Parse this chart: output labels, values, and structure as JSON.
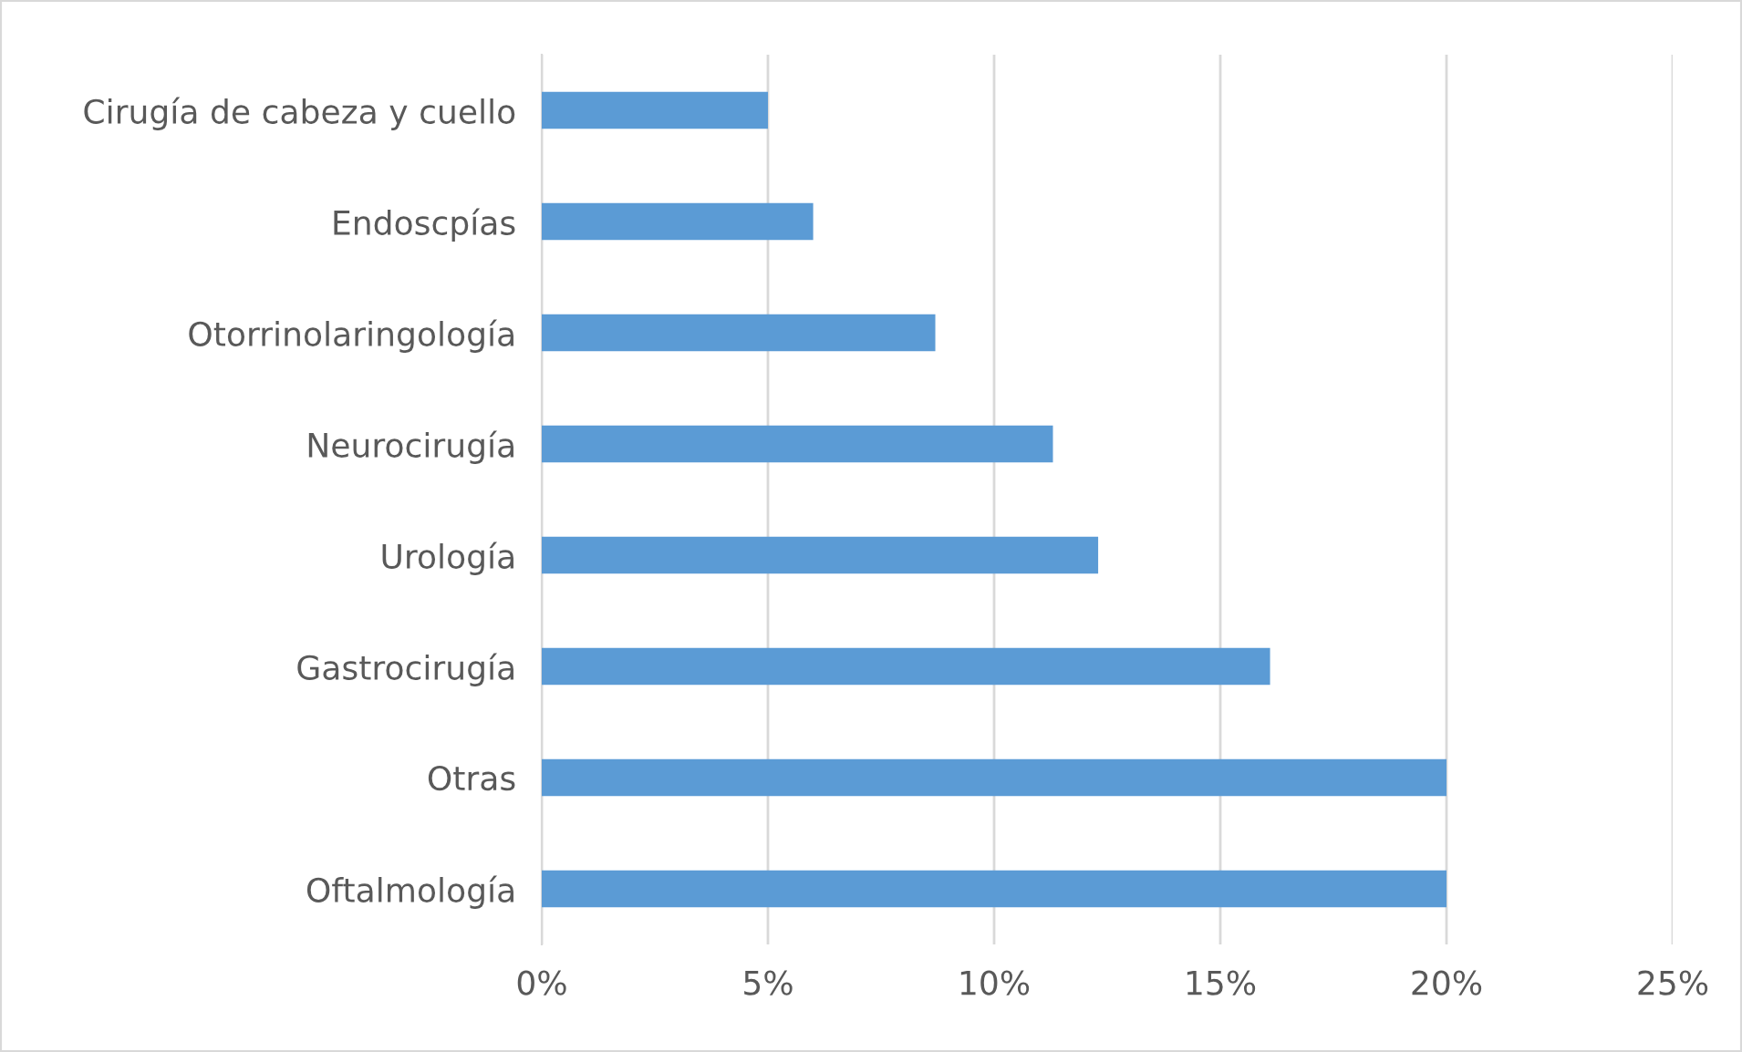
{
  "chart_data": {
    "type": "bar",
    "orientation": "horizontal",
    "categories": [
      "Cirugía de cabeza y cuello",
      "Endoscpías",
      "Otorrinolaringología",
      "Neurocirugía",
      "Urología",
      "Gastrocirugía",
      "Otras",
      "Oftalmología"
    ],
    "values": [
      5.0,
      6.0,
      8.7,
      11.3,
      12.3,
      16.1,
      20.0,
      20.0
    ],
    "color": "#5b9bd5",
    "xlim": [
      0,
      25
    ],
    "xticks": [
      {
        "value": 0,
        "label": "0%"
      },
      {
        "value": 5,
        "label": "5%"
      },
      {
        "value": 10,
        "label": "10%"
      },
      {
        "value": 15,
        "label": "15%"
      },
      {
        "value": 20,
        "label": "20%"
      },
      {
        "value": 25,
        "label": "25%"
      }
    ],
    "grid": "x",
    "legend": false
  }
}
